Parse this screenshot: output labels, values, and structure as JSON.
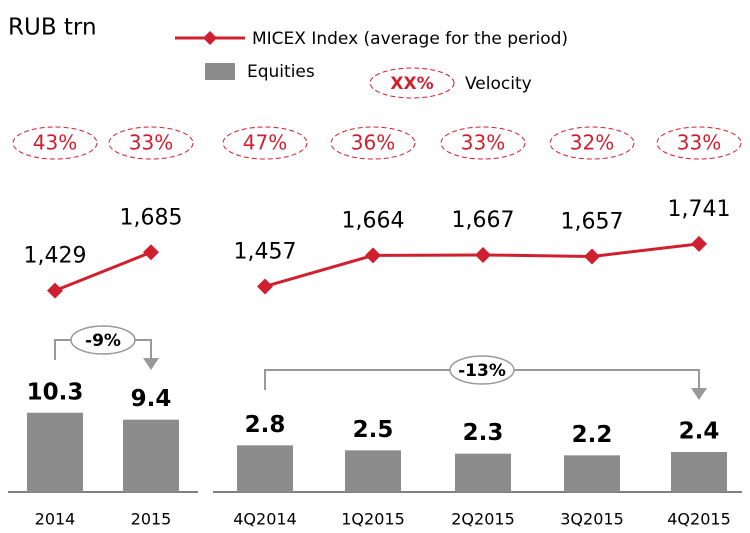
{
  "title": "RUB trn",
  "legend": {
    "velocity_sample": "XX%",
    "velocity": "Velocity"
  },
  "chart_data": [
    {
      "type": "bar",
      "categories": [
        "2014",
        "2015"
      ],
      "ylim": [
        0,
        13
      ],
      "y2lim": [
        1100,
        2000
      ],
      "series": [
        {
          "name": "Equities",
          "color": "#8c8c8c",
          "values": [
            10.3,
            9.4
          ]
        },
        {
          "name": "MICEX Index (average for the period)",
          "type": "line",
          "axis": "y2",
          "color": "#d0202f",
          "values": [
            1429,
            1685
          ],
          "value_labels": [
            "1,429",
            "1,685"
          ]
        }
      ],
      "velocity": {
        "values": [
          43,
          33
        ],
        "value_labels": [
          "43%",
          "33%"
        ]
      },
      "change": "-9%"
    },
    {
      "type": "bar",
      "categories": [
        "4Q2014",
        "1Q2015",
        "2Q2015",
        "3Q2015",
        "4Q2015"
      ],
      "ylim": [
        0,
        6
      ],
      "y2lim": [
        1100,
        2000
      ],
      "series": [
        {
          "color": "#8c8c8c",
          "values": [
            2.8,
            2.5,
            2.3,
            2.2,
            2.4
          ]
        },
        {
          "type": "line",
          "axis": "y2",
          "color": "#d0202f",
          "values": [
            1457,
            1664,
            1667,
            1657,
            1741
          ],
          "value_labels": [
            "1,457",
            "1,664",
            "1,667",
            "1,657",
            "1,741"
          ]
        }
      ],
      "velocity": {
        "values": [
          47,
          36,
          33,
          32,
          33
        ],
        "value_labels": [
          "47%",
          "36%",
          "33%",
          "32%",
          "33%"
        ]
      },
      "change": "-13%"
    }
  ]
}
